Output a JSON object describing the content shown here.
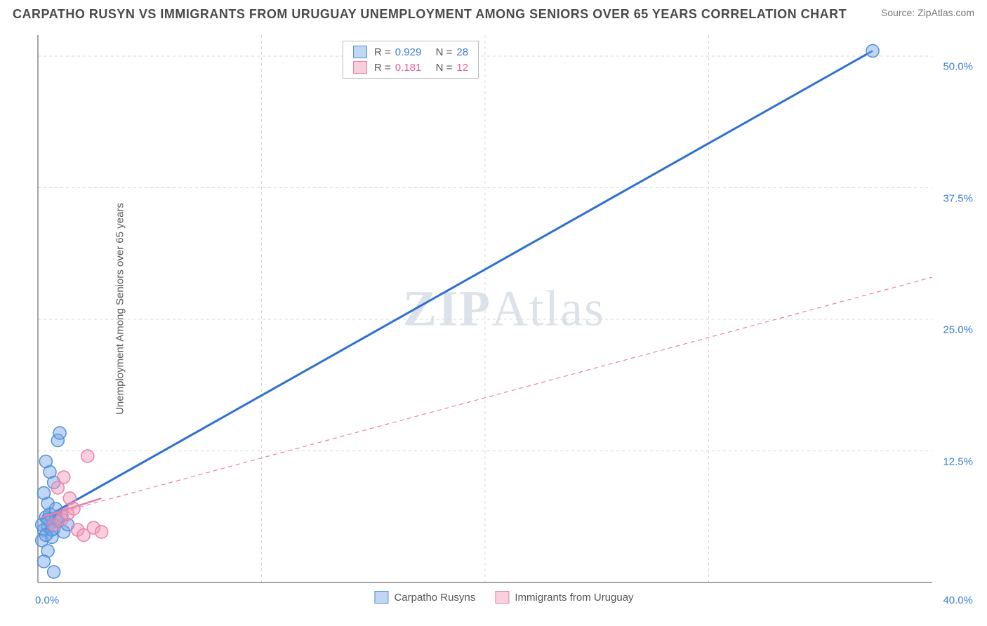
{
  "title": "CARPATHO RUSYN VS IMMIGRANTS FROM URUGUAY UNEMPLOYMENT AMONG SENIORS OVER 65 YEARS CORRELATION CHART",
  "source": "Source: ZipAtlas.com",
  "ylabel": "Unemployment Among Seniors over 65 years",
  "watermark": "ZIPAtlas",
  "chart": {
    "type": "scatter-correlation",
    "background_color": "#ffffff",
    "grid_color": "#d8d8d8",
    "axis_color": "#888888",
    "xlim": [
      0,
      45
    ],
    "ylim": [
      0,
      52
    ],
    "xtick_origin": {
      "x": 0,
      "label": "0.0%"
    },
    "xtick_end": {
      "x": 45,
      "label": "40.0%"
    },
    "yticks": [
      {
        "y": 12.5,
        "label": "12.5%"
      },
      {
        "y": 25.0,
        "label": "25.0%"
      },
      {
        "y": 37.5,
        "label": "37.5%"
      },
      {
        "y": 50.0,
        "label": "50.0%"
      }
    ],
    "vgrid_x": [
      11.25,
      22.5,
      33.75
    ],
    "series": [
      {
        "name": "Carpatho Rusyns",
        "color_fill": "rgba(115,165,230,0.45)",
        "color_stroke": "#4f8fd9",
        "line_color": "#2f6fd0",
        "line_width": 3,
        "line_dash": "none",
        "r_label": "R =",
        "r_value": "0.929",
        "n_label": "N =",
        "n_value": "28",
        "trend": {
          "x1": 0.2,
          "y1": 6.0,
          "x2": 42.0,
          "y2": 50.5
        },
        "marker_radius": 9,
        "points": [
          {
            "x": 0.3,
            "y": 5.0
          },
          {
            "x": 0.5,
            "y": 5.3
          },
          {
            "x": 0.8,
            "y": 5.1
          },
          {
            "x": 0.4,
            "y": 6.2
          },
          {
            "x": 0.6,
            "y": 6.5
          },
          {
            "x": 0.9,
            "y": 6.0
          },
          {
            "x": 0.2,
            "y": 4.0
          },
          {
            "x": 0.7,
            "y": 4.3
          },
          {
            "x": 1.0,
            "y": 5.8
          },
          {
            "x": 1.2,
            "y": 6.3
          },
          {
            "x": 0.5,
            "y": 7.5
          },
          {
            "x": 0.3,
            "y": 8.5
          },
          {
            "x": 0.8,
            "y": 9.5
          },
          {
            "x": 0.6,
            "y": 10.5
          },
          {
            "x": 0.4,
            "y": 11.5
          },
          {
            "x": 1.0,
            "y": 13.5
          },
          {
            "x": 1.1,
            "y": 14.2
          },
          {
            "x": 0.5,
            "y": 3.0
          },
          {
            "x": 0.3,
            "y": 2.0
          },
          {
            "x": 0.8,
            "y": 1.0
          },
          {
            "x": 1.3,
            "y": 4.8
          },
          {
            "x": 1.5,
            "y": 5.5
          },
          {
            "x": 0.2,
            "y": 5.5
          },
          {
            "x": 0.9,
            "y": 7.0
          },
          {
            "x": 0.4,
            "y": 4.5
          },
          {
            "x": 0.7,
            "y": 5.0
          },
          {
            "x": 0.5,
            "y": 6.0
          },
          {
            "x": 42.0,
            "y": 50.5
          }
        ]
      },
      {
        "name": "Immigrants from Uruguay",
        "color_fill": "rgba(240,150,180,0.45)",
        "color_stroke": "#e87fa8",
        "line_color": "#e87fa8",
        "line_width": 1.2,
        "line_dash": "6,5",
        "solid_segment": {
          "x1": 0.2,
          "y1": 6.2,
          "x2": 3.2,
          "y2": 8.0
        },
        "r_label": "R =",
        "r_value": "0.181",
        "n_label": "N =",
        "n_value": "12",
        "trend": {
          "x1": 0.2,
          "y1": 6.2,
          "x2": 45.0,
          "y2": 29.0
        },
        "marker_radius": 9,
        "points": [
          {
            "x": 0.8,
            "y": 5.5
          },
          {
            "x": 1.2,
            "y": 6.0
          },
          {
            "x": 1.5,
            "y": 6.5
          },
          {
            "x": 1.8,
            "y": 7.0
          },
          {
            "x": 2.0,
            "y": 5.0
          },
          {
            "x": 2.3,
            "y": 4.5
          },
          {
            "x": 2.8,
            "y": 5.2
          },
          {
            "x": 3.2,
            "y": 4.8
          },
          {
            "x": 1.0,
            "y": 9.0
          },
          {
            "x": 1.3,
            "y": 10.0
          },
          {
            "x": 2.5,
            "y": 12.0
          },
          {
            "x": 1.6,
            "y": 8.0
          }
        ]
      }
    ]
  },
  "legend_bottom": [
    {
      "label": "Carpatho Rusyns",
      "fill": "rgba(115,165,230,0.45)",
      "stroke": "#4f8fd9"
    },
    {
      "label": "Immigrants from Uruguay",
      "fill": "rgba(240,150,180,0.45)",
      "stroke": "#e87fa8"
    }
  ]
}
